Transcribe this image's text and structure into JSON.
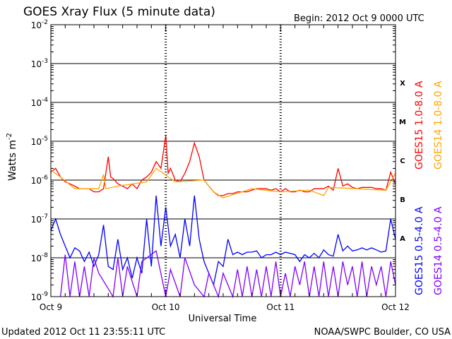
{
  "chart_data": {
    "type": "line",
    "title": "GOES Xray Flux (5 minute data)",
    "begin_label": "Begin:  2012 Oct 9 0000 UTC",
    "ylabel": "Watts m",
    "ylabel_sup": "-2",
    "xlabel": "Universal Time",
    "y_scale": "log",
    "ylim": [
      1e-09,
      0.01
    ],
    "y_ticks": [
      {
        "mant": "10",
        "exp": "-9",
        "value": 1e-09
      },
      {
        "mant": "10",
        "exp": "-8",
        "value": 1e-08
      },
      {
        "mant": "10",
        "exp": "-7",
        "value": 1e-07
      },
      {
        "mant": "10",
        "exp": "-6",
        "value": 1e-06
      },
      {
        "mant": "10",
        "exp": "-5",
        "value": 1e-05
      },
      {
        "mant": "10",
        "exp": "-4",
        "value": 0.0001
      },
      {
        "mant": "10",
        "exp": "-3",
        "value": 0.001
      },
      {
        "mant": "10",
        "exp": "-2",
        "value": 0.01
      }
    ],
    "x_range_hours": [
      0,
      72
    ],
    "x_ticks": [
      {
        "label": "Oct 9",
        "hour": 0
      },
      {
        "label": "Oct 10",
        "hour": 24
      },
      {
        "label": "Oct 11",
        "hour": 48
      },
      {
        "label": "Oct 12",
        "hour": 72
      }
    ],
    "grid": true,
    "flare_classes": [
      {
        "label": "X",
        "value": 0.00032
      },
      {
        "label": "M",
        "value": 3.2e-05
      },
      {
        "label": "C",
        "value": 3.2e-06
      },
      {
        "label": "B",
        "value": 3.2e-07
      },
      {
        "label": "A",
        "value": 3.2e-08
      }
    ],
    "series": [
      {
        "name": "GOES15 1.0-8.0 A",
        "color": "#ff0000",
        "kind": "long",
        "points": [
          [
            0,
            1.6e-06
          ],
          [
            1,
            2e-06
          ],
          [
            2,
            1.2e-06
          ],
          [
            3,
            9e-07
          ],
          [
            4,
            8e-07
          ],
          [
            5,
            7e-07
          ],
          [
            6,
            6e-07
          ],
          [
            7,
            6e-07
          ],
          [
            8,
            6e-07
          ],
          [
            9,
            5e-07
          ],
          [
            10,
            5e-07
          ],
          [
            11,
            6e-07
          ],
          [
            12,
            4e-06
          ],
          [
            12.5,
            1.2e-06
          ],
          [
            13,
            1.1e-06
          ],
          [
            14,
            8e-07
          ],
          [
            15,
            7e-07
          ],
          [
            16,
            6e-07
          ],
          [
            17,
            8e-07
          ],
          [
            18,
            6e-07
          ],
          [
            19,
            1e-06
          ],
          [
            20,
            1.2e-06
          ],
          [
            21,
            1.6e-06
          ],
          [
            22,
            3e-06
          ],
          [
            23,
            2e-06
          ],
          [
            24,
            1.4e-05
          ],
          [
            24.5,
            1.5e-06
          ],
          [
            25,
            2e-06
          ],
          [
            26,
            1e-06
          ],
          [
            27,
            9e-07
          ],
          [
            28,
            1.5e-06
          ],
          [
            29,
            3e-06
          ],
          [
            30,
            9e-06
          ],
          [
            31,
            4e-06
          ],
          [
            32,
            1e-06
          ],
          [
            33,
            7e-07
          ],
          [
            34,
            5e-07
          ],
          [
            35,
            4e-07
          ],
          [
            36,
            4e-07
          ],
          [
            37,
            4.5e-07
          ],
          [
            38,
            4.5e-07
          ],
          [
            39,
            5e-07
          ],
          [
            40,
            5e-07
          ],
          [
            41,
            5e-07
          ],
          [
            42,
            5.5e-07
          ],
          [
            43,
            6e-07
          ],
          [
            44,
            6e-07
          ],
          [
            45,
            6e-07
          ],
          [
            46,
            5.5e-07
          ],
          [
            47,
            6e-07
          ],
          [
            48,
            5e-07
          ],
          [
            49,
            6e-07
          ],
          [
            50,
            5e-07
          ],
          [
            51,
            5e-07
          ],
          [
            52,
            5.5e-07
          ],
          [
            53,
            5e-07
          ],
          [
            54,
            5e-07
          ],
          [
            55,
            6e-07
          ],
          [
            56,
            6e-07
          ],
          [
            57,
            6e-07
          ],
          [
            58,
            7e-07
          ],
          [
            59,
            5.5e-07
          ],
          [
            60,
            2e-06
          ],
          [
            61,
            7e-07
          ],
          [
            62,
            8e-07
          ],
          [
            63,
            6.5e-07
          ],
          [
            64,
            6e-07
          ],
          [
            65,
            6.5e-07
          ],
          [
            66,
            6.5e-07
          ],
          [
            67,
            6.5e-07
          ],
          [
            68,
            6e-07
          ],
          [
            69,
            6e-07
          ],
          [
            70,
            5.5e-07
          ],
          [
            71,
            1.6e-06
          ],
          [
            72,
            8e-07
          ]
        ]
      },
      {
        "name": "GOES14 1.0-8.0 A",
        "color": "#ffa500",
        "kind": "long",
        "points": [
          [
            0,
            1.8e-06
          ],
          [
            2,
            1.2e-06
          ],
          [
            5,
            6e-07
          ],
          [
            10,
            6e-07
          ],
          [
            11,
            1.4e-06
          ],
          [
            11.5,
            6e-07
          ],
          [
            14,
            7e-07
          ],
          [
            20,
            9e-07
          ],
          [
            22,
            2e-06
          ],
          [
            26,
            9e-07
          ],
          [
            32,
            1e-06
          ],
          [
            34,
            5e-07
          ],
          [
            36,
            3.5e-07
          ],
          [
            42,
            6e-07
          ],
          [
            48,
            5e-07
          ],
          [
            54,
            5.5e-07
          ],
          [
            57,
            4e-07
          ],
          [
            58,
            6.5e-07
          ],
          [
            64,
            6e-07
          ],
          [
            70,
            5.5e-07
          ],
          [
            72,
            1.5e-06
          ]
        ]
      },
      {
        "name": "GOES15 0.5-4.0 A",
        "color": "#0000ff",
        "kind": "short",
        "points": [
          [
            0,
            5e-08
          ],
          [
            1,
            1e-07
          ],
          [
            2,
            4e-08
          ],
          [
            3,
            2e-08
          ],
          [
            4,
            1e-08
          ],
          [
            5,
            1.8e-08
          ],
          [
            6,
            1.5e-08
          ],
          [
            7,
            8e-09
          ],
          [
            8,
            1.4e-08
          ],
          [
            9,
            6e-09
          ],
          [
            10,
            1.2e-08
          ],
          [
            11,
            7e-08
          ],
          [
            12,
            6e-09
          ],
          [
            13,
            5e-09
          ],
          [
            14,
            3e-08
          ],
          [
            15,
            5e-09
          ],
          [
            16,
            1e-08
          ],
          [
            17,
            3e-09
          ],
          [
            18,
            1e-08
          ],
          [
            19,
            4e-09
          ],
          [
            20,
            1e-07
          ],
          [
            21,
            6e-09
          ],
          [
            22,
            4e-07
          ],
          [
            23,
            2e-08
          ],
          [
            24,
            2e-07
          ],
          [
            25,
            2e-08
          ],
          [
            26,
            4e-08
          ],
          [
            27,
            1e-08
          ],
          [
            28,
            1e-07
          ],
          [
            29,
            2e-08
          ],
          [
            30,
            4e-07
          ],
          [
            31,
            3e-08
          ],
          [
            32,
            8e-09
          ],
          [
            33,
            4e-09
          ],
          [
            34,
            2e-09
          ],
          [
            35,
            8e-09
          ],
          [
            36,
            6e-09
          ],
          [
            37,
            3e-08
          ],
          [
            38,
            1.2e-08
          ],
          [
            39,
            1.4e-08
          ],
          [
            40,
            1.2e-08
          ],
          [
            41,
            1.4e-08
          ],
          [
            42,
            1.4e-08
          ],
          [
            43,
            1.5e-08
          ],
          [
            44,
            1e-08
          ],
          [
            45,
            1.2e-08
          ],
          [
            46,
            1.2e-08
          ],
          [
            47,
            1.4e-08
          ],
          [
            48,
            1.2e-08
          ],
          [
            49,
            1.4e-08
          ],
          [
            50,
            1.3e-08
          ],
          [
            51,
            1.2e-08
          ],
          [
            52,
            8e-09
          ],
          [
            53,
            1.2e-08
          ],
          [
            54,
            1e-08
          ],
          [
            55,
            1.3e-08
          ],
          [
            56,
            1e-08
          ],
          [
            57,
            1.6e-08
          ],
          [
            58,
            1.2e-08
          ],
          [
            59,
            1.1e-08
          ],
          [
            60,
            4e-08
          ],
          [
            61,
            1.5e-08
          ],
          [
            62,
            2e-08
          ],
          [
            63,
            1.5e-08
          ],
          [
            64,
            1.6e-08
          ],
          [
            65,
            1.8e-08
          ],
          [
            66,
            1.6e-08
          ],
          [
            67,
            1.8e-08
          ],
          [
            68,
            1.6e-08
          ],
          [
            69,
            1.4e-08
          ],
          [
            70,
            1.5e-08
          ],
          [
            71,
            1e-07
          ],
          [
            72,
            3e-08
          ]
        ]
      },
      {
        "name": "GOES14 0.5-4.0 A",
        "color": "#7f00ff",
        "kind": "short",
        "points": [
          [
            2,
            1e-09
          ],
          [
            3,
            1.2e-08
          ],
          [
            4,
            1e-09
          ],
          [
            5,
            8e-09
          ],
          [
            6,
            1e-09
          ],
          [
            7,
            6e-09
          ],
          [
            8,
            1e-09
          ],
          [
            9,
            1e-08
          ],
          [
            10,
            4e-09
          ],
          [
            13,
            1e-09
          ],
          [
            14,
            1e-08
          ],
          [
            15,
            1e-09
          ],
          [
            16,
            6e-09
          ],
          [
            18,
            1e-09
          ],
          [
            19,
            8e-09
          ],
          [
            22,
            1.5e-08
          ],
          [
            24,
            1e-09
          ],
          [
            25,
            5e-09
          ],
          [
            27,
            1e-09
          ],
          [
            28,
            1e-08
          ],
          [
            30,
            2e-09
          ],
          [
            32,
            1e-09
          ],
          [
            33,
            4e-09
          ],
          [
            35,
            1e-09
          ],
          [
            36,
            4e-09
          ],
          [
            38,
            1e-09
          ],
          [
            39,
            5e-09
          ],
          [
            40,
            1e-09
          ],
          [
            41,
            6e-09
          ],
          [
            42,
            1e-09
          ],
          [
            43,
            5e-09
          ],
          [
            44,
            1e-09
          ],
          [
            45,
            6e-09
          ],
          [
            46,
            1e-09
          ],
          [
            47,
            8e-09
          ],
          [
            48,
            1e-09
          ],
          [
            49,
            4e-09
          ],
          [
            50,
            1e-09
          ],
          [
            51,
            6e-09
          ],
          [
            52,
            2e-09
          ],
          [
            53,
            8e-09
          ],
          [
            54,
            1e-09
          ],
          [
            55,
            6e-09
          ],
          [
            56,
            1e-09
          ],
          [
            57,
            8e-09
          ],
          [
            58,
            1e-09
          ],
          [
            59,
            6e-09
          ],
          [
            60,
            1e-09
          ],
          [
            61,
            8e-09
          ],
          [
            62,
            2e-09
          ],
          [
            63,
            6e-09
          ],
          [
            64,
            1e-09
          ],
          [
            65,
            8e-09
          ],
          [
            66,
            1e-09
          ],
          [
            67,
            6e-09
          ],
          [
            68,
            2e-09
          ],
          [
            69,
            6e-09
          ],
          [
            70,
            1e-09
          ],
          [
            71,
            8e-09
          ],
          [
            72,
            2e-09
          ]
        ]
      }
    ],
    "footer_left": "Updated 2012 Oct 11 23:55:11 UTC",
    "footer_right": "NOAA/SWPC Boulder, CO USA"
  }
}
